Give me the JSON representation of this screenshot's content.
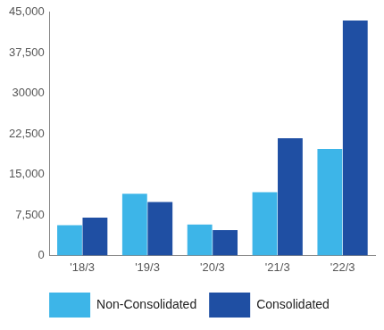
{
  "chart_data": {
    "type": "bar",
    "categories": [
      "'18/3",
      "'19/3",
      "'20/3",
      "'21/3",
      "'22/3"
    ],
    "series": [
      {
        "name": "Non-Consolidated",
        "color": "#3db5e8",
        "values": [
          5600,
          11400,
          5700,
          11700,
          19700
        ]
      },
      {
        "name": "Consolidated",
        "color": "#1f4fa3",
        "values": [
          7000,
          9900,
          4700,
          21700,
          43500
        ]
      }
    ],
    "ylim": [
      0,
      45000
    ],
    "yticks": [
      0,
      {
        "value": 7500,
        "label": "7,500"
      },
      {
        "value": 15000,
        "label": "15,000"
      },
      {
        "value": 22500,
        "label": "22,500"
      },
      30000,
      {
        "value": 37500,
        "label": "37,500"
      },
      {
        "value": 45000,
        "label": "45,000"
      }
    ],
    "grid": false,
    "legend": "bottom"
  }
}
